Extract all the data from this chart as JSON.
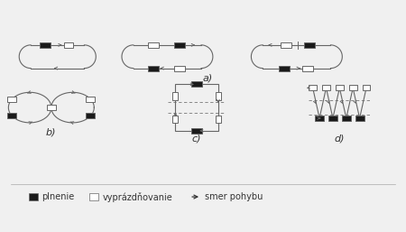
{
  "bg_color": "#f0f0f0",
  "line_color": "#666666",
  "fill_black": "#1a1a1a",
  "fill_white": "#ffffff",
  "legend_items": [
    "plnenie",
    "vyprázdňovanie",
    "smer pohybu"
  ],
  "label_a": "a)",
  "label_b": "b)",
  "label_c": "c)",
  "label_d": "d)",
  "font_size": 7
}
